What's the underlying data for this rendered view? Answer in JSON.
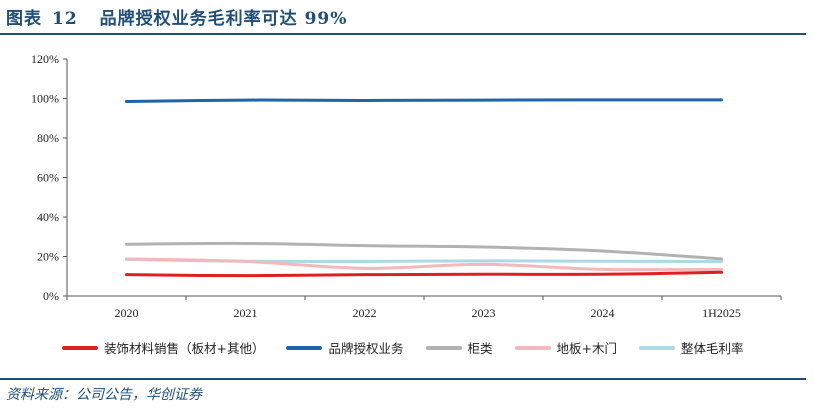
{
  "header": {
    "figure_label": "图表",
    "figure_number": "12",
    "title": "品牌授权业务毛利率可达 99%"
  },
  "source": "资料来源：公司公告，华创证券",
  "colors": {
    "accent": "#1F4E79",
    "axis": "#555555"
  },
  "chart_data": {
    "type": "line",
    "categories": [
      "2020",
      "2021",
      "2022",
      "2023",
      "2024",
      "1H2025"
    ],
    "ylim": [
      0,
      120
    ],
    "yticks": [
      0,
      20,
      40,
      60,
      80,
      100,
      120
    ],
    "ytick_labels": [
      "0%",
      "20%",
      "40%",
      "60%",
      "80%",
      "100%",
      "120%"
    ],
    "grid": false,
    "legend_position": "bottom",
    "smooth": true,
    "series": [
      {
        "name": "装饰材料销售（板材+其他）",
        "color": "#E02020",
        "values": [
          10.8,
          10.3,
          10.8,
          11.0,
          11.0,
          12.0
        ]
      },
      {
        "name": "品牌授权业务",
        "color": "#1E64AA",
        "values": [
          98.5,
          99.2,
          99.0,
          99.2,
          99.3,
          99.3
        ]
      },
      {
        "name": "柜类",
        "color": "#B2B2B2",
        "values": [
          26.2,
          26.6,
          25.5,
          24.8,
          22.8,
          18.8
        ]
      },
      {
        "name": "地板+木门",
        "color": "#F2B8BC",
        "values": [
          18.8,
          17.5,
          14.0,
          16.0,
          13.5,
          13.5
        ]
      },
      {
        "name": "整体毛利率",
        "color": "#ADD8E6",
        "values": [
          18.5,
          17.6,
          17.5,
          17.8,
          17.6,
          17.4
        ]
      }
    ]
  }
}
